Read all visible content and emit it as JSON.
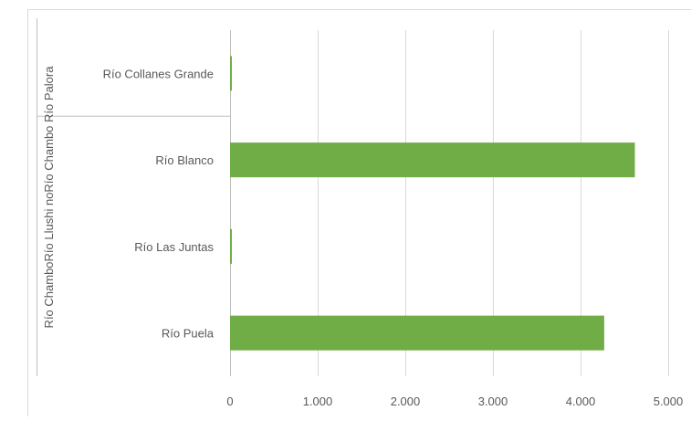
{
  "chart_data": {
    "type": "bar",
    "orientation": "horizontal",
    "groups": [
      {
        "name": "Río Palora",
        "categories": [
          "Río Collanes Grande"
        ]
      },
      {
        "name": "Río Chambo",
        "categories": [
          "Río Blanco"
        ]
      },
      {
        "name": "Río Llushino",
        "categories": [
          "Río Las Juntas"
        ]
      },
      {
        "name": "Río Chambo",
        "categories": [
          "Río Puela"
        ]
      }
    ],
    "categories": [
      "Río Collanes Grande",
      "Río Blanco",
      "Río Las Juntas",
      "Río Puela"
    ],
    "values": [
      15,
      4620,
      15,
      4270
    ],
    "xlim": [
      0,
      5000
    ],
    "xticks": [
      0,
      1000,
      2000,
      3000,
      4000,
      5000
    ],
    "xtick_labels": [
      "0",
      "1.000",
      "2.000",
      "3.000",
      "4.000",
      "5.000"
    ],
    "group_label_row": [
      "Río Chambo",
      "Río Llushino",
      "Río Chambo",
      "Río Palora"
    ],
    "group_label_text": "Río ChamboRío Llushi noRío Chambo Río Palora",
    "grid": true,
    "legend": "none",
    "colors": {
      "bar": "#70ad47",
      "grid": "#d9d9d9",
      "axis": "#bfbfbf",
      "text": "#595959"
    },
    "title": "",
    "xlabel": "",
    "ylabel": ""
  }
}
